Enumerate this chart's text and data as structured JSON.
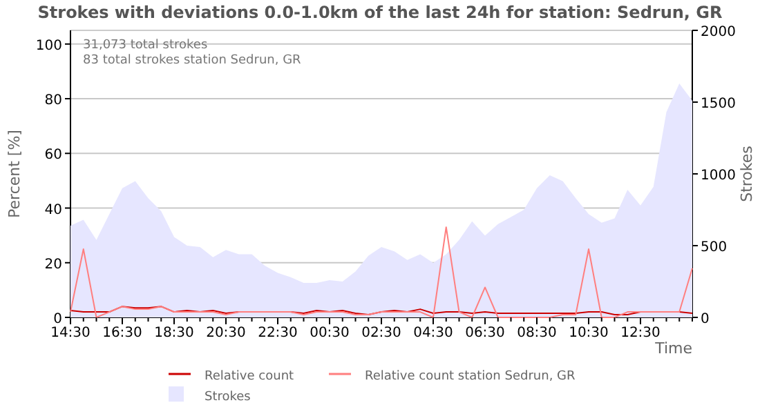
{
  "chart_data": {
    "type": "line",
    "title": "Strokes with deviations 0.0-1.0km of the last 24h for station: Sedrun, GR",
    "xlabel": "Time",
    "ylabel": "Percent   [%]",
    "y2label": "Strokes",
    "annotations": [
      "31,073 total strokes",
      "83 total strokes station Sedrun, GR"
    ],
    "categories": [
      "14:30",
      null,
      null,
      null,
      "16:30",
      null,
      null,
      null,
      "18:30",
      null,
      null,
      null,
      "20:30",
      null,
      null,
      null,
      "22:30",
      null,
      null,
      null,
      "00:30",
      null,
      null,
      null,
      "02:30",
      null,
      null,
      null,
      "04:30",
      null,
      null,
      null,
      "06:30",
      null,
      null,
      null,
      "08:30",
      null,
      null,
      null,
      "10:30",
      null,
      null,
      null,
      "12:30",
      null,
      null,
      null,
      null
    ],
    "ylim": [
      0,
      105
    ],
    "yticks": [
      0,
      20,
      40,
      60,
      80,
      100
    ],
    "y2lim": [
      0,
      2000
    ],
    "y2ticks": [
      0,
      500,
      1000,
      1500,
      2000
    ],
    "grid": "y",
    "legend": "bottom",
    "series": [
      {
        "name": "Relative count",
        "color": "#cc0000",
        "values": [
          2.5,
          2,
          2,
          2,
          4,
          3.5,
          3.5,
          4,
          2,
          2.5,
          2,
          2.5,
          1.5,
          2,
          2,
          2,
          2,
          2,
          1.5,
          2.5,
          2,
          2.5,
          1.5,
          1,
          2,
          2.5,
          2,
          3,
          1.5,
          2,
          2,
          1.5,
          2,
          1.5,
          1.5,
          1.5,
          1.5,
          1.5,
          1.5,
          1.5,
          2,
          2,
          1,
          1,
          2,
          2,
          2,
          2,
          1.5
        ]
      },
      {
        "name": "Relative count station Sedrun, GR",
        "color": "#ff7f7f",
        "values": [
          2,
          25,
          0,
          2,
          4,
          3,
          3,
          4,
          2,
          2,
          2,
          2,
          1,
          2,
          2,
          2,
          2,
          2,
          1,
          2,
          2,
          2,
          1,
          1,
          2,
          2,
          2,
          2,
          0,
          33,
          2,
          0,
          11,
          0,
          0,
          0,
          0,
          0,
          1,
          1,
          25,
          0,
          0,
          2,
          2,
          2,
          2,
          2,
          18
        ]
      },
      {
        "name": "Strokes",
        "type": "area",
        "axis": "y2",
        "color": "#e6e6ff",
        "values": [
          640,
          680,
          540,
          720,
          900,
          950,
          830,
          740,
          560,
          500,
          490,
          420,
          470,
          440,
          440,
          360,
          310,
          280,
          240,
          240,
          260,
          250,
          320,
          430,
          490,
          460,
          400,
          440,
          380,
          440,
          540,
          670,
          570,
          650,
          700,
          750,
          900,
          990,
          950,
          830,
          720,
          660,
          690,
          890,
          780,
          910,
          1430,
          1630,
          1510
        ]
      }
    ]
  }
}
